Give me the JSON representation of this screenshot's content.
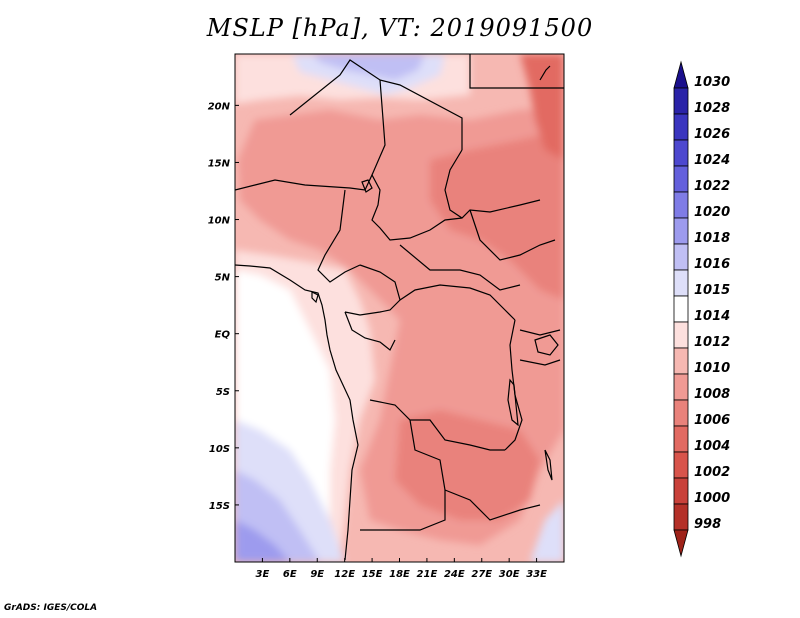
{
  "title": "MSLP [hPa], VT: 2019091500",
  "credit": "GrADS: IGES/COLA",
  "chart_data": {
    "type": "heatmap",
    "variable": "MSLP",
    "units": "hPa",
    "valid_time": "2019091500",
    "lon_range": [
      0,
      36
    ],
    "lat_range": [
      -20,
      24.5
    ],
    "x_ticks": [
      {
        "value": 3,
        "label": "3E"
      },
      {
        "value": 6,
        "label": "6E"
      },
      {
        "value": 9,
        "label": "9E"
      },
      {
        "value": 12,
        "label": "12E"
      },
      {
        "value": 15,
        "label": "15E"
      },
      {
        "value": 18,
        "label": "18E"
      },
      {
        "value": 21,
        "label": "21E"
      },
      {
        "value": 24,
        "label": "24E"
      },
      {
        "value": 27,
        "label": "27E"
      },
      {
        "value": 30,
        "label": "30E"
      },
      {
        "value": 33,
        "label": "33E"
      }
    ],
    "y_ticks": [
      {
        "value": 20,
        "label": "20N"
      },
      {
        "value": 15,
        "label": "15N"
      },
      {
        "value": 10,
        "label": "10N"
      },
      {
        "value": 5,
        "label": "5N"
      },
      {
        "value": 0,
        "label": "EQ"
      },
      {
        "value": -5,
        "label": "5S"
      },
      {
        "value": -10,
        "label": "10S"
      },
      {
        "value": -15,
        "label": "15S"
      }
    ],
    "colorbar": {
      "labels": [
        "1030",
        "1028",
        "1026",
        "1024",
        "1022",
        "1020",
        "1018",
        "1016",
        "1015",
        "1014",
        "1012",
        "1010",
        "1008",
        "1006",
        "1004",
        "1002",
        "1000",
        "998"
      ],
      "colors": [
        "#1a0f8c",
        "#2a23a8",
        "#3a35bf",
        "#4d48cf",
        "#6460dc",
        "#7f7ce6",
        "#9d9bee",
        "#c0bff4",
        "#dedff9",
        "#ffffff",
        "#fde0de",
        "#f6b8b2",
        "#f09a94",
        "#e9827b",
        "#e26a62",
        "#d8544b",
        "#c9413a",
        "#b43028",
        "#9e2219"
      ]
    },
    "regions": [
      {
        "name": "far-southwest-ocean",
        "value_range": "1018-1020"
      },
      {
        "name": "southwest-ocean-band",
        "value_range": "1016-1018"
      },
      {
        "name": "west-gulf-ocean",
        "value_range": "1014-1015"
      },
      {
        "name": "north-sahara-high",
        "value_range": "1015-1016"
      },
      {
        "name": "central-africa-low",
        "value_range": "1008-1010"
      },
      {
        "name": "sudan-east-low",
        "value_range": "1006-1008"
      },
      {
        "name": "northeast-corner-low",
        "value_range": "1004-1006"
      }
    ]
  }
}
